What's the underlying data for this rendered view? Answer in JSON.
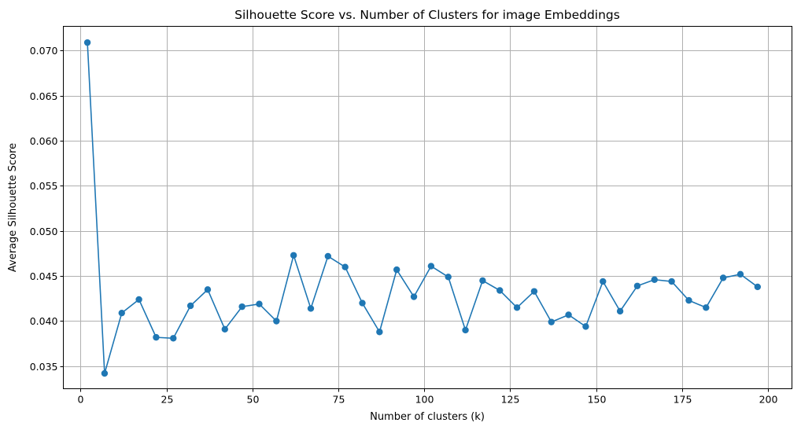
{
  "chart_data": {
    "type": "line",
    "title": "Silhouette Score vs. Number of Clusters for image Embeddings",
    "xlabel": "Number of clusters (k)",
    "ylabel": "Average Silhouette Score",
    "xlim": [
      -5,
      207
    ],
    "ylim": [
      0.0325,
      0.0727
    ],
    "xticks": [
      0,
      25,
      50,
      75,
      100,
      125,
      150,
      175,
      200
    ],
    "xtick_labels": [
      "0",
      "25",
      "50",
      "75",
      "100",
      "125",
      "150",
      "175",
      "200"
    ],
    "yticks": [
      0.035,
      0.04,
      0.045,
      0.05,
      0.055,
      0.06,
      0.065,
      0.07
    ],
    "ytick_labels": [
      "0.035",
      "0.040",
      "0.045",
      "0.050",
      "0.055",
      "0.060",
      "0.065",
      "0.070"
    ],
    "grid": true,
    "marker": "circle",
    "color": "#1f77b4",
    "x": [
      2,
      7,
      12,
      17,
      22,
      27,
      32,
      37,
      42,
      47,
      52,
      57,
      62,
      67,
      72,
      77,
      82,
      87,
      92,
      97,
      102,
      107,
      112,
      117,
      122,
      127,
      132,
      137,
      142,
      147,
      152,
      157,
      162,
      167,
      172,
      177,
      182,
      187,
      192,
      197
    ],
    "y": [
      0.0709,
      0.0342,
      0.0409,
      0.0424,
      0.0382,
      0.0381,
      0.0417,
      0.0435,
      0.0391,
      0.0416,
      0.0419,
      0.04,
      0.0473,
      0.0414,
      0.0472,
      0.046,
      0.042,
      0.0388,
      0.0457,
      0.0427,
      0.0461,
      0.0449,
      0.039,
      0.0445,
      0.0434,
      0.0415,
      0.0433,
      0.0399,
      0.0407,
      0.0394,
      0.0444,
      0.0411,
      0.0439,
      0.0446,
      0.0444,
      0.0423,
      0.0415,
      0.0448,
      0.0452,
      0.0438
    ]
  }
}
